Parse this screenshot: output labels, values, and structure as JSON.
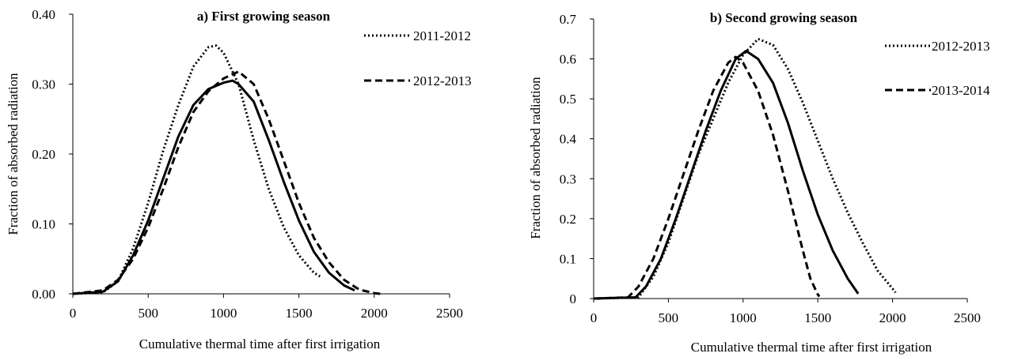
{
  "chart_data": [
    {
      "type": "line",
      "title": "a) First growing season",
      "xlabel": "Cumulative thermal time after first irrigation",
      "ylabel": "Fraction of absorbed radiation",
      "xlim": [
        0,
        2500
      ],
      "ylim": [
        0,
        0.4
      ],
      "xticks": [
        0,
        500,
        1000,
        1500,
        2000,
        2500
      ],
      "yticks": [
        0,
        0.1,
        0.2,
        0.3,
        0.4
      ],
      "ytick_labels": [
        "0.00",
        "0.10",
        "0.20",
        "0.30",
        "0.40"
      ],
      "grid": false,
      "legend": "top-right",
      "series": [
        {
          "name": "2011-2012",
          "style": "dotted",
          "points": [
            [
              0,
              0
            ],
            [
              200,
              0.002
            ],
            [
              300,
              0.018
            ],
            [
              400,
              0.065
            ],
            [
              500,
              0.13
            ],
            [
              600,
              0.205
            ],
            [
              700,
              0.27
            ],
            [
              800,
              0.325
            ],
            [
              900,
              0.353
            ],
            [
              950,
              0.355
            ],
            [
              1000,
              0.345
            ],
            [
              1100,
              0.3
            ],
            [
              1200,
              0.22
            ],
            [
              1300,
              0.15
            ],
            [
              1400,
              0.095
            ],
            [
              1500,
              0.055
            ],
            [
              1600,
              0.03
            ],
            [
              1640,
              0.025
            ]
          ]
        },
        {
          "name": "2012-2013",
          "style": "dashed",
          "points": [
            [
              0,
              0
            ],
            [
              200,
              0.005
            ],
            [
              300,
              0.02
            ],
            [
              400,
              0.05
            ],
            [
              500,
              0.095
            ],
            [
              600,
              0.15
            ],
            [
              700,
              0.21
            ],
            [
              800,
              0.26
            ],
            [
              900,
              0.29
            ],
            [
              1000,
              0.308
            ],
            [
              1100,
              0.318
            ],
            [
              1200,
              0.3
            ],
            [
              1300,
              0.25
            ],
            [
              1400,
              0.19
            ],
            [
              1500,
              0.13
            ],
            [
              1600,
              0.08
            ],
            [
              1700,
              0.045
            ],
            [
              1800,
              0.02
            ],
            [
              1900,
              0.006
            ],
            [
              2000,
              0.001
            ],
            [
              2040,
              0
            ]
          ]
        },
        {
          "name": "",
          "style": "solid",
          "points": [
            [
              0,
              0
            ],
            [
              200,
              0.003
            ],
            [
              300,
              0.018
            ],
            [
              400,
              0.055
            ],
            [
              500,
              0.105
            ],
            [
              600,
              0.165
            ],
            [
              700,
              0.225
            ],
            [
              800,
              0.27
            ],
            [
              900,
              0.293
            ],
            [
              1000,
              0.302
            ],
            [
              1060,
              0.305
            ],
            [
              1100,
              0.3
            ],
            [
              1200,
              0.275
            ],
            [
              1300,
              0.22
            ],
            [
              1400,
              0.16
            ],
            [
              1500,
              0.105
            ],
            [
              1600,
              0.06
            ],
            [
              1700,
              0.03
            ],
            [
              1800,
              0.012
            ],
            [
              1870,
              0.005
            ]
          ]
        }
      ]
    },
    {
      "type": "line",
      "title": "b) Second growing season",
      "xlabel": "Cumulative thermal time after first irrigation",
      "ylabel": "Fraction of absorbed radiation",
      "xlim": [
        0,
        2500
      ],
      "ylim": [
        0,
        0.7
      ],
      "xticks": [
        0,
        500,
        1000,
        1500,
        2000,
        2500
      ],
      "yticks": [
        0,
        0.1,
        0.2,
        0.3,
        0.4,
        0.5,
        0.6,
        0.7
      ],
      "ytick_labels": [
        "0",
        "0.1",
        "0.2",
        "0.3",
        "0.4",
        "0.5",
        "0.6",
        "0.7"
      ],
      "grid": false,
      "legend": "top-right",
      "series": [
        {
          "name": "2012-2013",
          "style": "dotted",
          "points": [
            [
              0,
              0
            ],
            [
              300,
              0.003
            ],
            [
              400,
              0.055
            ],
            [
              500,
              0.14
            ],
            [
              600,
              0.25
            ],
            [
              700,
              0.36
            ],
            [
              800,
              0.45
            ],
            [
              900,
              0.54
            ],
            [
              1000,
              0.61
            ],
            [
              1100,
              0.65
            ],
            [
              1200,
              0.635
            ],
            [
              1300,
              0.575
            ],
            [
              1400,
              0.49
            ],
            [
              1500,
              0.395
            ],
            [
              1600,
              0.3
            ],
            [
              1700,
              0.215
            ],
            [
              1800,
              0.14
            ],
            [
              1900,
              0.07
            ],
            [
              2000,
              0.025
            ],
            [
              2020,
              0.015
            ]
          ]
        },
        {
          "name": "2013-2014",
          "style": "dashed",
          "points": [
            [
              0,
              0
            ],
            [
              230,
              0.003
            ],
            [
              300,
              0.03
            ],
            [
              400,
              0.1
            ],
            [
              500,
              0.2
            ],
            [
              600,
              0.31
            ],
            [
              700,
              0.42
            ],
            [
              800,
              0.52
            ],
            [
              900,
              0.59
            ],
            [
              950,
              0.605
            ],
            [
              1000,
              0.59
            ],
            [
              1100,
              0.52
            ],
            [
              1200,
              0.41
            ],
            [
              1300,
              0.27
            ],
            [
              1400,
              0.12
            ],
            [
              1450,
              0.05
            ],
            [
              1500,
              0.01
            ],
            [
              1510,
              0.005
            ]
          ]
        },
        {
          "name": "",
          "style": "solid",
          "points": [
            [
              0,
              0
            ],
            [
              280,
              0.003
            ],
            [
              350,
              0.03
            ],
            [
              450,
              0.1
            ],
            [
              550,
              0.2
            ],
            [
              650,
              0.31
            ],
            [
              750,
              0.42
            ],
            [
              850,
              0.52
            ],
            [
              950,
              0.6
            ],
            [
              1020,
              0.62
            ],
            [
              1100,
              0.6
            ],
            [
              1200,
              0.54
            ],
            [
              1300,
              0.44
            ],
            [
              1400,
              0.32
            ],
            [
              1500,
              0.21
            ],
            [
              1600,
              0.12
            ],
            [
              1700,
              0.05
            ],
            [
              1770,
              0.012
            ]
          ]
        }
      ]
    }
  ]
}
